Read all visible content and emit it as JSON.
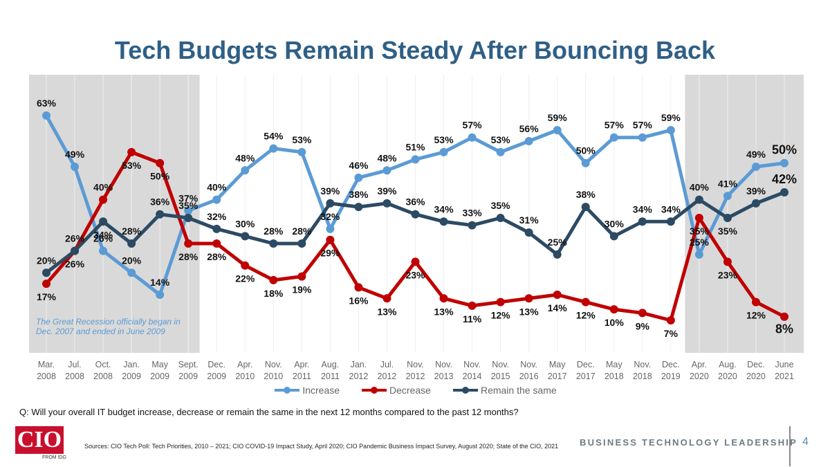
{
  "title": "Tech Budgets Remain Steady After Bouncing Back",
  "question": "Q: Will your overall IT budget increase, decrease or remain the same in the next 12 months compared to the past 12 months?",
  "sources": "Sources: CIO Tech Poll: Tech Priorities, 2010 – 2021; CIO COVID-19 Impact Study, April 2020; CIO Pandemic Business Impact Survey, August 2020; State of the CIO, 2021",
  "tagline": "BUSINESS TECHNOLOGY LEADERSHIP",
  "page_number": "4",
  "logo": {
    "text": "CIO",
    "sub": "FROM IDG"
  },
  "colors": {
    "increase": "#5b9bd5",
    "decrease": "#c00000",
    "remain": "#2c4a63",
    "shade": "#d9d9d9",
    "title": "#2f5f86"
  },
  "chart_data": {
    "type": "line",
    "title": "Tech Budgets Remain Steady After Bouncing Back",
    "ylim": [
      0,
      70
    ],
    "categories": [
      [
        "Mar.",
        "2008"
      ],
      [
        "Jul.",
        "2008"
      ],
      [
        "Oct.",
        "2008"
      ],
      [
        "Jan.",
        "2009"
      ],
      [
        "May",
        "2009"
      ],
      [
        "Sept.",
        "2009"
      ],
      [
        "Dec.",
        "2009"
      ],
      [
        "Apr.",
        "2010"
      ],
      [
        "Nov.",
        "2010"
      ],
      [
        "Apr.",
        "2011"
      ],
      [
        "Aug.",
        "2011"
      ],
      [
        "Jan.",
        "2012"
      ],
      [
        "Jul.",
        "2012"
      ],
      [
        "Nov.",
        "2012"
      ],
      [
        "Nov.",
        "2013"
      ],
      [
        "Nov.",
        "2014"
      ],
      [
        "Nov.",
        "2015"
      ],
      [
        "Nov.",
        "2016"
      ],
      [
        "May",
        "2017"
      ],
      [
        "Dec.",
        "2017"
      ],
      [
        "May",
        "2018"
      ],
      [
        "Nov.",
        "2018"
      ],
      [
        "Dec.",
        "2019"
      ],
      [
        "Apr.",
        "2020"
      ],
      [
        "Aug.",
        "2020"
      ],
      [
        "Dec.",
        "2020"
      ],
      [
        "June",
        "2021"
      ]
    ],
    "series": [
      {
        "name": "Increase",
        "key": "increase",
        "values": [
          63,
          49,
          26,
          20,
          14,
          37,
          40,
          48,
          54,
          53,
          32,
          46,
          48,
          51,
          53,
          57,
          53,
          56,
          59,
          50,
          57,
          57,
          59,
          25,
          41,
          49,
          50
        ]
      },
      {
        "name": "Decrease",
        "key": "decrease",
        "values": [
          17,
          26,
          40,
          53,
          50,
          28,
          28,
          22,
          18,
          19,
          29,
          16,
          13,
          23,
          13,
          11,
          12,
          13,
          14,
          12,
          10,
          9,
          7,
          35,
          23,
          12,
          8
        ]
      },
      {
        "name": "Remain the same",
        "key": "remain",
        "values": [
          20,
          26,
          34,
          28,
          36,
          35,
          32,
          30,
          28,
          28,
          39,
          38,
          39,
          36,
          34,
          33,
          35,
          31,
          25,
          38,
          30,
          34,
          34,
          40,
          35,
          39,
          42
        ]
      }
    ],
    "shaded_ranges": [
      {
        "from": 0,
        "to": 5,
        "note": "The Great Recession officially began in Dec. 2007 and ended in June 2009"
      },
      {
        "from": 23,
        "to": 26
      }
    ],
    "legend": [
      "Increase",
      "Decrease",
      "Remain the same"
    ]
  }
}
